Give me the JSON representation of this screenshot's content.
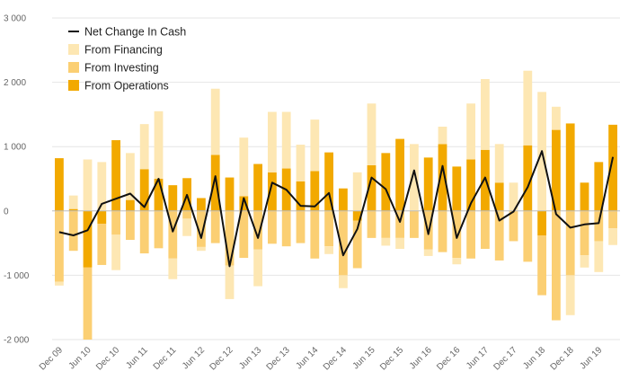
{
  "chart_data": {
    "type": "bar",
    "legend": {
      "placement": "top-left",
      "items": [
        {
          "label": "Net Change In Cash",
          "kind": "line",
          "color": "#111111"
        },
        {
          "label": "From Financing",
          "kind": "bar",
          "color": "#FDE7B3"
        },
        {
          "label": "From Investing",
          "kind": "bar",
          "color": "#FBCF73"
        },
        {
          "label": "From Operations",
          "kind": "bar",
          "color": "#F2A900"
        }
      ]
    },
    "ylim": [
      -2000,
      3000
    ],
    "yticks": [
      {
        "value": 3000,
        "label": "3 000"
      },
      {
        "value": 2000,
        "label": "2 000"
      },
      {
        "value": 1000,
        "label": "1 000"
      },
      {
        "value": 0,
        "label": "0"
      },
      {
        "value": -1000,
        "label": "-1 000"
      },
      {
        "value": -2000,
        "label": "-2 000"
      }
    ],
    "grid": true,
    "x_tick_labels": [
      "Dec 09",
      "Jun 10",
      "Dec 10",
      "Jun 11",
      "Dec 11",
      "Jun 12",
      "Dec 12",
      "Jun 13",
      "Dec 13",
      "Jun 14",
      "Dec 14",
      "Jun 15",
      "Dec 15",
      "Jun 16",
      "Dec 16",
      "Jun 17",
      "Dec 17",
      "Jun 18",
      "Dec 18",
      "Jun 19"
    ],
    "periods": [
      "Dec 09",
      "Mar 10",
      "Jun 10",
      "Sep 10",
      "Dec 10",
      "Mar 11",
      "Jun 11",
      "Sep 11",
      "Dec 11",
      "Mar 12",
      "Jun 12",
      "Sep 12",
      "Dec 12",
      "Mar 13",
      "Jun 13",
      "Sep 13",
      "Dec 13",
      "Mar 14",
      "Jun 14",
      "Sep 14",
      "Dec 14",
      "Mar 15",
      "Jun 15",
      "Sep 15",
      "Dec 15",
      "Mar 16",
      "Jun 16",
      "Sep 16",
      "Dec 16",
      "Mar 17",
      "Jun 17",
      "Sep 17",
      "Dec 17",
      "Mar 18",
      "Jun 18",
      "Sep 18",
      "Dec 18",
      "Mar 19",
      "Jun 19",
      "Sep 19"
    ],
    "series": [
      {
        "name": "From Operations",
        "values": [
          820,
          30,
          -880,
          -200,
          1100,
          170,
          650,
          500,
          400,
          510,
          200,
          870,
          520,
          230,
          730,
          600,
          660,
          460,
          620,
          910,
          350,
          -150,
          710,
          900,
          1120,
          0,
          830,
          1040,
          690,
          800,
          950,
          440,
          0,
          1020,
          -380,
          1260,
          1360,
          440,
          760,
          1340
        ]
      },
      {
        "name": "From Investing",
        "values": [
          -1100,
          -620,
          -1120,
          -640,
          -370,
          -450,
          -660,
          -580,
          -740,
          -120,
          -560,
          -500,
          -850,
          -730,
          -600,
          -510,
          -550,
          -500,
          -740,
          -550,
          -1000,
          -740,
          -420,
          -420,
          -420,
          -420,
          -600,
          -640,
          -730,
          -740,
          -590,
          -770,
          -470,
          -790,
          -930,
          -1700,
          -1000,
          -690,
          -470,
          -270
        ]
      },
      {
        "name": "From Financing",
        "values": [
          -60,
          210,
          800,
          760,
          -550,
          730,
          700,
          1050,
          -320,
          -270,
          -60,
          1030,
          -520,
          910,
          -570,
          940,
          880,
          570,
          800,
          -120,
          -200,
          600,
          960,
          -120,
          -170,
          1040,
          -100,
          270,
          -100,
          870,
          1100,
          600,
          440,
          1160,
          1850,
          360,
          -620,
          -190,
          -480,
          -260
        ]
      },
      {
        "name": "Net Change In Cash",
        "values": [
          -330,
          -380,
          -300,
          110,
          190,
          270,
          60,
          500,
          -320,
          250,
          -420,
          540,
          -860,
          200,
          -420,
          440,
          330,
          80,
          70,
          280,
          -690,
          -280,
          520,
          340,
          -170,
          630,
          -360,
          700,
          -420,
          120,
          520,
          -150,
          -10,
          370,
          930,
          -50,
          -260,
          -210,
          -190,
          840
        ]
      }
    ]
  }
}
